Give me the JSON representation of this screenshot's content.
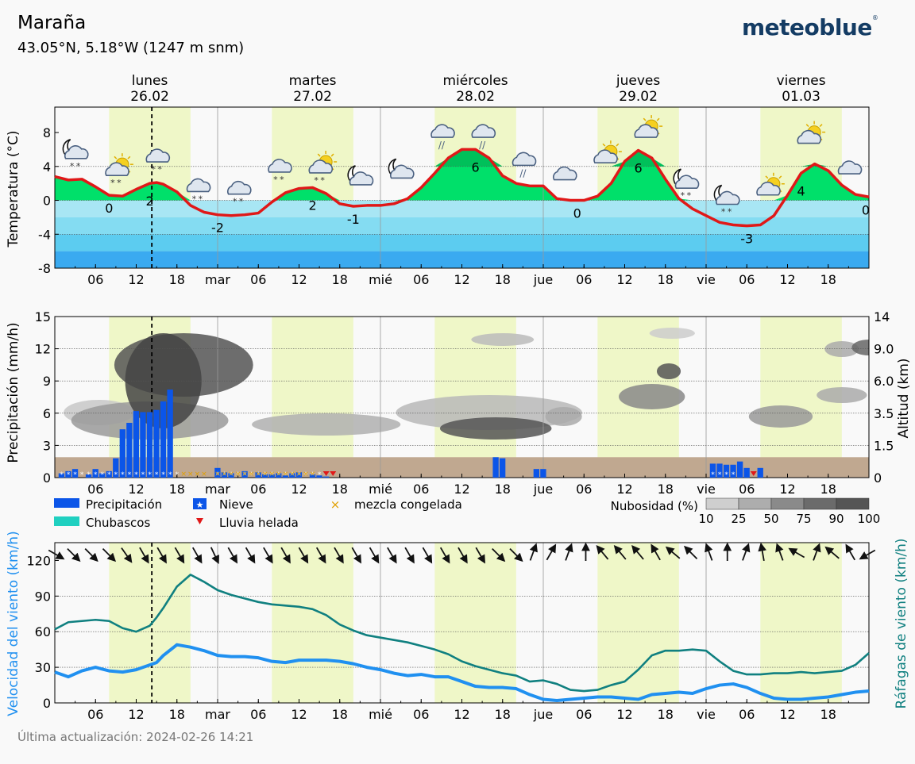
{
  "header": {
    "location": "Maraña",
    "coords": "43.05°N, 5.18°W (1247 m snm)",
    "brand": "meteoblue",
    "brand_mark": "®"
  },
  "footer": {
    "updated": "Última actualización: 2024-02-26 14:21"
  },
  "colors": {
    "day_band": "#eff7c8",
    "temp_line": "#e01818",
    "temp_warm": "#00e06a",
    "temp_warm_dark": "#00c05a",
    "temp_cold": [
      "#a8e6f4",
      "#84dcf2",
      "#5cccf0",
      "#3aaaf0"
    ],
    "precip": "#0b55e8",
    "freezing_rain": "#e01818",
    "mixed": "#e0a000",
    "ground": "#c0a890",
    "wind": "#2090f0",
    "gust": "#108080",
    "now_line": "#000000"
  },
  "icons": [
    "moon-cloud-snow-icon",
    "sun-cloud-snow-icon",
    "cloud-snow-icon",
    "cloud-snow-icon",
    "cloud-snow-icon",
    "cloud-snow-icon",
    "sun-cloud-snow-icon",
    "moon-cloud-icon",
    "moon-cloud-icon",
    "cloud-rain-icon",
    "cloud-rain-icon",
    "cloud-rain-icon",
    "cloud-icon",
    "sun-cloud-icon",
    "sun-cloud-icon",
    "moon-cloud-snow-icon",
    "moon-cloud-snow-icon",
    "sun-cloud-icon",
    "sun-cloud-icon",
    "cloud-icon"
  ],
  "chart_data": [
    {
      "type": "area",
      "name": "temperature",
      "ylabel": "Temperatura (°C)",
      "ylim": [
        -8,
        11
      ],
      "yticks": [
        -8,
        -4,
        0,
        4,
        8
      ],
      "xlim": [
        0,
        120
      ],
      "days": [
        {
          "name": "lunes",
          "date": "26.02"
        },
        {
          "name": "martes",
          "date": "27.02"
        },
        {
          "name": "miércoles",
          "date": "28.02"
        },
        {
          "name": "jueves",
          "date": "29.02"
        },
        {
          "name": "viernes",
          "date": "01.03"
        }
      ],
      "xtick_labels": [
        "06",
        "12",
        "18",
        "mar",
        "06",
        "12",
        "18",
        "mié",
        "06",
        "12",
        "18",
        "jue",
        "06",
        "12",
        "18",
        "vie",
        "06",
        "12",
        "18"
      ],
      "x": [
        0,
        2,
        4,
        6,
        8,
        10,
        12,
        14,
        15,
        16,
        18,
        20,
        22,
        24,
        26,
        28,
        30,
        32,
        34,
        36,
        38,
        40,
        42,
        44,
        46,
        48,
        50,
        52,
        54,
        56,
        58,
        60,
        62,
        64,
        66,
        68,
        70,
        72,
        74,
        76,
        78,
        80,
        82,
        84,
        86,
        88,
        90,
        92,
        94,
        96,
        98,
        100,
        102,
        104,
        106,
        108,
        110,
        112,
        114,
        116,
        118,
        120
      ],
      "y": [
        2.8,
        2.4,
        2.5,
        1.6,
        0.6,
        0.5,
        1.3,
        2.0,
        2.1,
        1.9,
        1.0,
        -0.6,
        -1.4,
        -1.7,
        -1.8,
        -1.7,
        -1.5,
        -0.2,
        0.9,
        1.4,
        1.5,
        0.8,
        -0.4,
        -0.7,
        -0.6,
        -0.6,
        -0.4,
        0.2,
        1.5,
        3.2,
        5.0,
        6.0,
        6.0,
        5.0,
        2.9,
        2.0,
        1.7,
        1.7,
        0.2,
        0.0,
        0.0,
        0.5,
        2.0,
        4.6,
        5.9,
        5.0,
        2.5,
        0.2,
        -1.0,
        -1.8,
        -2.6,
        -2.9,
        -3.0,
        -2.9,
        -1.8,
        0.6,
        3.2,
        4.3,
        3.5,
        1.8,
        0.7,
        0.4
      ],
      "labels": [
        {
          "x": 8,
          "text": "0"
        },
        {
          "x": 14,
          "text": "2"
        },
        {
          "x": 24,
          "text": "-2"
        },
        {
          "x": 38,
          "text": "2"
        },
        {
          "x": 44,
          "text": "-1"
        },
        {
          "x": 62,
          "text": "6"
        },
        {
          "x": 77,
          "text": "0"
        },
        {
          "x": 86,
          "text": "6"
        },
        {
          "x": 102,
          "text": "-3"
        },
        {
          "x": 110,
          "text": "4"
        },
        {
          "x": 120,
          "text": "0"
        }
      ]
    },
    {
      "type": "bar",
      "name": "precipitation",
      "ylabel": "Precipitación (mm/h)",
      "ylabel_right": "Altitud (km)",
      "ylim": [
        0,
        15
      ],
      "yticks": [
        0,
        3,
        6,
        9,
        12,
        15
      ],
      "yticks_right": [
        "0",
        "1.5",
        "3.5",
        "6.0",
        "9.0",
        "14"
      ],
      "xtick_labels": [
        "06",
        "12",
        "18",
        "mar",
        "06",
        "12",
        "18",
        "mié",
        "06",
        "12",
        "18",
        "jue",
        "06",
        "12",
        "18",
        "vie",
        "06",
        "12",
        "18"
      ],
      "series": [
        {
          "name": "Precipitación",
          "x": [
            1,
            2,
            3,
            5,
            6,
            7,
            8,
            9,
            10,
            11,
            12,
            13,
            14,
            15,
            16,
            17,
            24,
            25,
            26,
            28,
            30,
            31,
            32,
            33,
            34,
            35,
            36,
            38,
            39,
            40,
            65,
            66,
            71,
            72,
            97,
            98,
            99,
            100,
            101,
            102,
            104
          ],
          "values": [
            0.4,
            0.6,
            0.8,
            0.3,
            0.8,
            0.4,
            0.6,
            1.8,
            4.5,
            5.1,
            6.2,
            6.1,
            6.1,
            6.3,
            7.1,
            8.2,
            0.9,
            0.5,
            0.4,
            0.6,
            0.5,
            0.3,
            0.3,
            0.4,
            0.2,
            0.4,
            0.5,
            0.3,
            0.2,
            0.1,
            1.9,
            1.8,
            0.8,
            0.8,
            1.3,
            1.3,
            1.2,
            1.2,
            1.5,
            0.9,
            0.9
          ]
        },
        {
          "name": "Chubascos",
          "x": [],
          "values": []
        }
      ],
      "snow_hours": [
        1,
        2,
        3,
        4,
        5,
        6,
        7,
        8,
        9,
        10,
        11,
        12,
        13,
        14,
        15,
        16,
        17,
        18,
        24,
        25,
        26,
        27,
        28,
        29,
        30,
        31,
        32,
        33,
        34,
        35,
        36,
        37,
        38,
        39,
        40,
        97,
        98,
        99,
        100
      ],
      "mixed_hours": [
        19,
        20,
        21,
        22,
        24,
        25,
        26,
        27,
        28,
        29,
        30,
        31,
        32,
        33,
        34,
        35,
        36,
        37,
        38
      ],
      "freezing_hours": [
        40,
        41,
        103
      ],
      "legend": [
        "Precipitación",
        "Chubascos",
        "Nieve",
        "Lluvia helada",
        "mezcla congelada"
      ],
      "cloud_legend": {
        "title": "Nubosidad (%)",
        "levels": [
          "10",
          "25",
          "50",
          "75",
          "90",
          "100"
        ]
      }
    },
    {
      "type": "line",
      "name": "wind",
      "ylabel": "Velocidad del viento (km/h)",
      "ylabel_right": "Ráfagas de viento (km/h)",
      "ylim": [
        0,
        135
      ],
      "yticks": [
        0,
        30,
        60,
        90,
        120
      ],
      "xtick_labels": [
        "06",
        "12",
        "18",
        "mar",
        "06",
        "12",
        "18",
        "mié",
        "06",
        "12",
        "18",
        "jue",
        "06",
        "12",
        "18",
        "vie",
        "06",
        "12",
        "18"
      ],
      "series": [
        {
          "name": "Velocidad del viento",
          "x": [
            0,
            2,
            4,
            6,
            8,
            10,
            12,
            14,
            15,
            16,
            18,
            20,
            22,
            24,
            26,
            28,
            30,
            32,
            34,
            36,
            38,
            40,
            42,
            44,
            46,
            48,
            50,
            52,
            54,
            56,
            58,
            60,
            62,
            64,
            66,
            68,
            70,
            72,
            74,
            76,
            78,
            80,
            82,
            84,
            86,
            88,
            90,
            92,
            94,
            96,
            98,
            100,
            102,
            104,
            106,
            108,
            110,
            112,
            114,
            116,
            118,
            120
          ],
          "values": [
            26,
            22,
            27,
            30,
            27,
            26,
            28,
            32,
            34,
            40,
            49,
            47,
            44,
            40,
            39,
            39,
            38,
            35,
            34,
            36,
            36,
            36,
            35,
            33,
            30,
            28,
            25,
            23,
            24,
            22,
            22,
            18,
            14,
            13,
            13,
            12,
            7,
            3,
            2,
            3,
            4,
            5,
            5,
            4,
            3,
            7,
            8,
            9,
            8,
            12,
            15,
            16,
            13,
            8,
            4,
            3,
            3,
            4,
            5,
            7,
            9,
            10
          ]
        },
        {
          "name": "Ráfagas de viento",
          "x": [
            0,
            2,
            4,
            6,
            8,
            10,
            12,
            14,
            15,
            16,
            18,
            20,
            22,
            24,
            26,
            28,
            30,
            32,
            34,
            36,
            38,
            40,
            42,
            44,
            46,
            48,
            50,
            52,
            54,
            56,
            58,
            60,
            62,
            64,
            66,
            68,
            70,
            72,
            74,
            76,
            78,
            80,
            82,
            84,
            86,
            88,
            90,
            92,
            94,
            96,
            98,
            100,
            102,
            104,
            106,
            108,
            110,
            112,
            114,
            116,
            118,
            120
          ],
          "values": [
            62,
            68,
            69,
            70,
            69,
            63,
            60,
            65,
            72,
            80,
            98,
            108,
            102,
            95,
            91,
            88,
            85,
            83,
            82,
            81,
            79,
            74,
            66,
            61,
            57,
            55,
            53,
            51,
            48,
            45,
            41,
            35,
            31,
            28,
            25,
            23,
            18,
            19,
            16,
            11,
            10,
            11,
            15,
            18,
            28,
            40,
            44,
            44,
            45,
            44,
            35,
            27,
            24,
            24,
            25,
            25,
            26,
            25,
            26,
            27,
            32,
            42
          ]
        }
      ],
      "wind_dir_deg": [
        300,
        315,
        315,
        315,
        325,
        330,
        330,
        330,
        330,
        335,
        330,
        330,
        330,
        330,
        330,
        330,
        330,
        330,
        330,
        330,
        330,
        330,
        330,
        330,
        330,
        315,
        315,
        200,
        210,
        200,
        180,
        140,
        140,
        140,
        150,
        130,
        135,
        160,
        180,
        200,
        170,
        160,
        120,
        200,
        130,
        150,
        60
      ]
    }
  ]
}
